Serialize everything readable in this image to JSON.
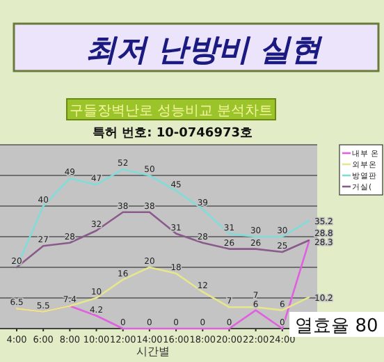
{
  "chart_data": {
    "type": "line",
    "title": "최저 난방비 실현",
    "subtitle": "구들장벽난로 성능비교 분석차트",
    "xlabel": "시간별",
    "annotations": [
      "특허 번호: 10-0746973호",
      "열효율 80"
    ],
    "categories": [
      "4:00",
      "6:00",
      "8:00",
      "10:00",
      "12:00",
      "14:00",
      "16:00",
      "18:00",
      "20:00",
      "22:00",
      "24:00",
      null
    ],
    "series": [
      {
        "name": "내부 온",
        "color": "#e060e0",
        "values": [
          6.5,
          5.5,
          7.4,
          4.2,
          0,
          0,
          0,
          0,
          0,
          6,
          0,
          28.3
        ],
        "value_labels": [
          "6.5",
          "5.5",
          "7.4",
          "4.2",
          "0",
          "0",
          "0",
          "0",
          "0",
          "6",
          "0",
          "28.3"
        ]
      },
      {
        "name": "외부온",
        "color": "#e6e68c",
        "values": [
          6.5,
          5.5,
          7.4,
          10,
          16,
          20,
          18,
          12,
          7,
          7,
          6,
          10.2
        ],
        "value_labels": [
          null,
          null,
          null,
          "10",
          "16",
          "20",
          "18",
          "12",
          "7",
          "7",
          "6",
          "10.2"
        ]
      },
      {
        "name": "방열판",
        "color": "#80dcd8",
        "values": [
          20,
          40,
          49,
          47,
          52,
          50,
          45,
          39,
          31,
          30,
          30,
          35.2
        ],
        "value_labels": [
          null,
          "40",
          "49",
          "47",
          "52",
          "50",
          "45",
          "39",
          "31",
          "30",
          "30",
          "35.2"
        ]
      },
      {
        "name": "거실(",
        "color": "#8a5a8a",
        "values": [
          20,
          27,
          28,
          32,
          38,
          38,
          31,
          28,
          26,
          26,
          25,
          28.8
        ],
        "value_labels": [
          "20",
          "27",
          "28",
          "32",
          "38",
          "38",
          "31",
          "28",
          "26",
          "26",
          "25",
          "28.8"
        ]
      }
    ],
    "ylim": [
      0,
      60
    ],
    "yticks": [
      {
        "value": 0,
        "label": null
      },
      {
        "value": 10,
        "label": null
      },
      {
        "value": 20,
        "label": null
      },
      {
        "value": 30,
        "label": null
      },
      {
        "value": 40,
        "label": null
      },
      {
        "value": 50,
        "label": null
      },
      {
        "value": 60,
        "label": null
      }
    ],
    "tick_labels": "x",
    "grid": "y",
    "legend": "right",
    "marker": "none"
  }
}
